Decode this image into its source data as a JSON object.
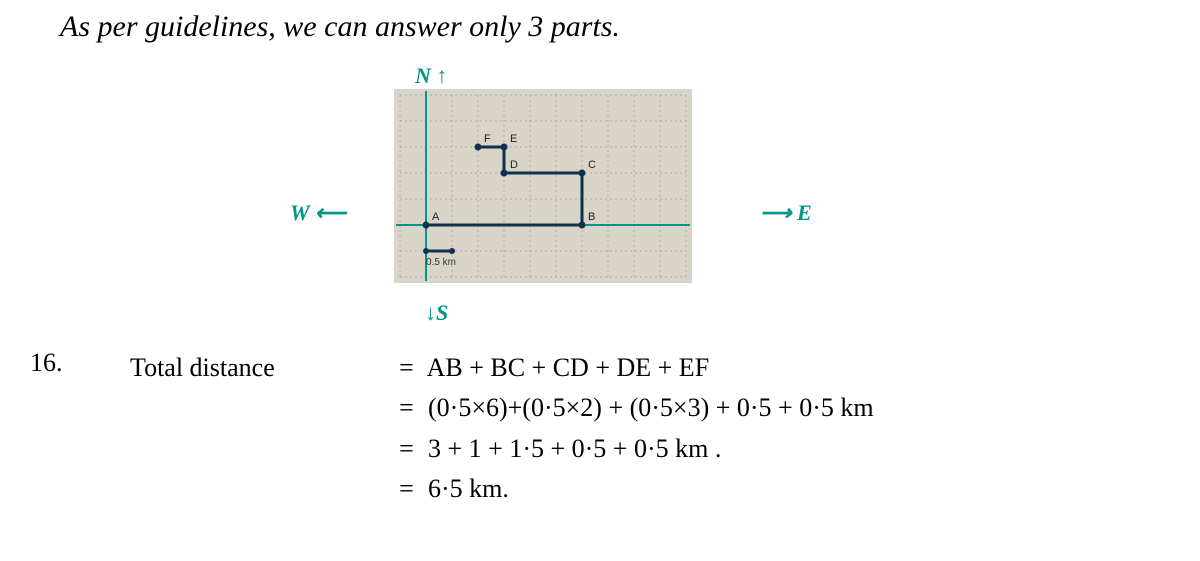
{
  "top_note": "As per guidelines, we can answer only 3 parts.",
  "compass": {
    "N": "N",
    "S": "S",
    "E": "E",
    "W": "W"
  },
  "diagram": {
    "bg_color": "#d9d4c8",
    "grid_color": "#b0aca0",
    "path_color": "#103050",
    "axis_color": "#009688",
    "scale_label": "0.5 km",
    "points": {
      "A": "A",
      "B": "B",
      "C": "C",
      "D": "D",
      "E": "E",
      "F": "F"
    },
    "grid": {
      "cols": 11,
      "rows": 7,
      "cell": 26
    },
    "path_coords": [
      [
        1,
        5
      ],
      [
        7,
        5
      ],
      [
        7,
        3
      ],
      [
        4,
        3
      ],
      [
        4,
        2
      ],
      [
        3,
        2
      ]
    ],
    "scale_segment": [
      [
        1,
        6
      ],
      [
        2,
        6
      ]
    ]
  },
  "problem_number": "16.",
  "equations": {
    "label": "Total distance",
    "lines": [
      "AB + BC + CD + DE + EF",
      "(0·5×6)+(0·5×2) + (0·5×3) + 0·5 + 0·5  km",
      "3 + 1 + 1·5 + 0·5 + 0·5  km .",
      "6·5 km."
    ]
  },
  "colors": {
    "ink": "#1a1a1a",
    "teal": "#009688"
  }
}
